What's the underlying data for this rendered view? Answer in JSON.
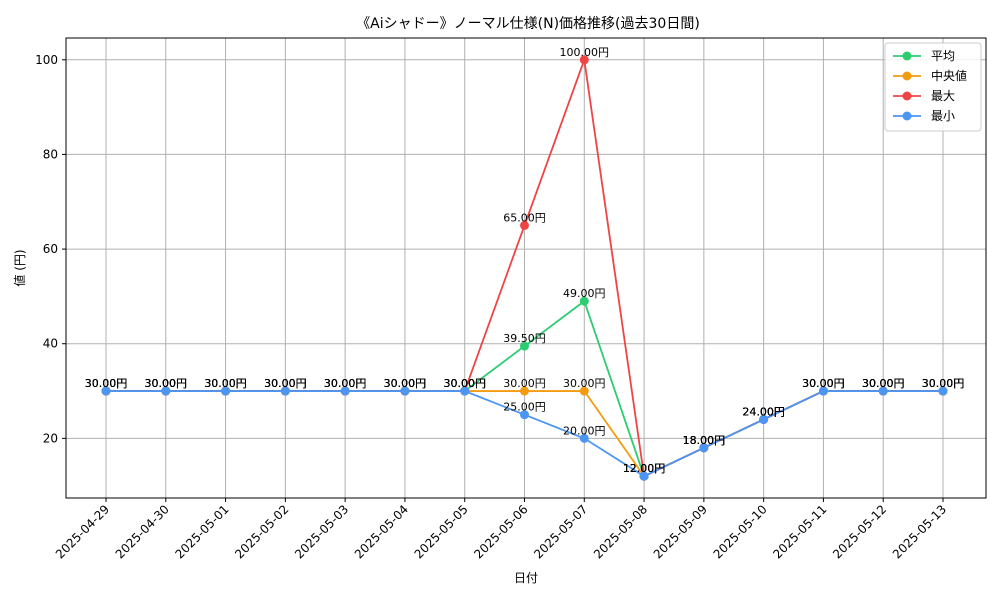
{
  "chart_data": {
    "type": "line",
    "title": "《Aiシャドー》ノーマル仕様(N)価格推移(過去30日間)",
    "xlabel": "日付",
    "ylabel": "値 (円)",
    "ylim": [
      7.4,
      104.6
    ],
    "yticks": [
      20,
      40,
      60,
      80,
      100
    ],
    "grid": true,
    "legend_position": "top-right",
    "categories": [
      "2025-04-29",
      "2025-04-30",
      "2025-05-01",
      "2025-05-02",
      "2025-05-03",
      "2025-05-04",
      "2025-05-05",
      "2025-05-06",
      "2025-05-07",
      "2025-05-08",
      "2025-05-09",
      "2025-05-10",
      "2025-05-11",
      "2025-05-12",
      "2025-05-13"
    ],
    "value_suffix": "円",
    "series": [
      {
        "name": "平均",
        "color": "#2ecc71",
        "values": [
          30,
          30,
          30,
          30,
          30,
          30,
          30,
          39.5,
          49,
          12,
          18,
          24,
          30,
          30,
          30
        ]
      },
      {
        "name": "中央値",
        "color": "#f39c12",
        "values": [
          30,
          30,
          30,
          30,
          30,
          30,
          30,
          30,
          30,
          12,
          18,
          24,
          30,
          30,
          30
        ]
      },
      {
        "name": "最大",
        "color": "#ef4444",
        "values": [
          30,
          30,
          30,
          30,
          30,
          30,
          30,
          65,
          100,
          12,
          18,
          24,
          30,
          30,
          30
        ]
      },
      {
        "name": "最小",
        "color": "#4b96f3",
        "values": [
          30,
          30,
          30,
          30,
          30,
          30,
          30,
          25,
          20,
          12,
          18,
          24,
          30,
          30,
          30
        ]
      }
    ]
  }
}
